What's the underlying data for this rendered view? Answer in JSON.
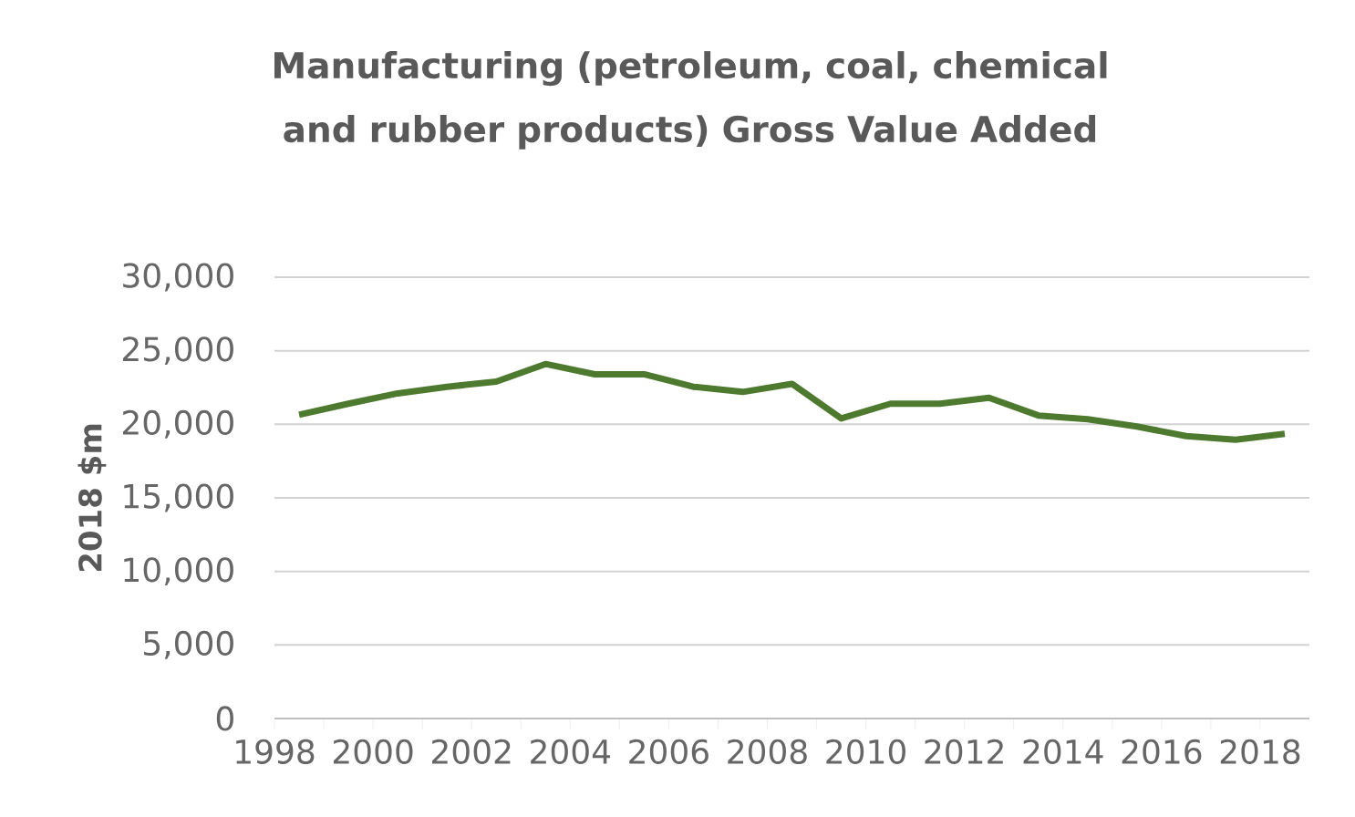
{
  "chart_data": {
    "type": "line",
    "title": "Manufacturing (petroleum, coal, chemical and rubber products) Gross Value Added",
    "ylabel": "2018 $m",
    "x": [
      1998.5,
      1999.5,
      2000.5,
      2001.5,
      2002.5,
      2003.5,
      2004.5,
      2005.5,
      2006.5,
      2007.5,
      2008.5,
      2009.5,
      2010.5,
      2011.5,
      2012.5,
      2013.5,
      2014.5,
      2015.5,
      2016.5,
      2017.5,
      2018.5
    ],
    "series": [
      {
        "color": "#4e7a2f",
        "values": [
          20650,
          21400,
          22100,
          22550,
          22900,
          24100,
          23400,
          23400,
          22550,
          22200,
          22750,
          20400,
          21400,
          21400,
          21800,
          20600,
          20350,
          19850,
          19200,
          18950,
          19350
        ]
      }
    ],
    "xlim": [
      1998,
      2019
    ],
    "xticks": [
      1998,
      2000,
      2002,
      2004,
      2006,
      2008,
      2010,
      2012,
      2014,
      2016,
      2018
    ],
    "ylim": [
      0,
      30000
    ],
    "yticks": [
      0,
      {
        "value": 5000,
        "label": "5,000"
      },
      {
        "value": 10000,
        "label": "10,000"
      },
      {
        "value": 15000,
        "label": "15,000"
      },
      {
        "value": 20000,
        "label": "20,000"
      },
      {
        "value": 25000,
        "label": "25,000"
      },
      {
        "value": 30000,
        "label": "30,000"
      }
    ],
    "grid": "y"
  }
}
